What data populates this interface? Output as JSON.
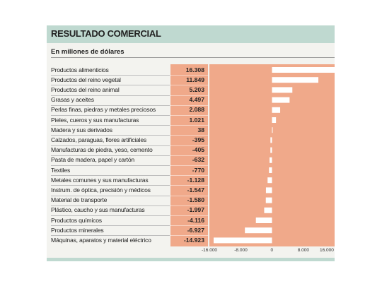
{
  "chart_data": {
    "type": "bar",
    "orientation": "horizontal",
    "title": "RESULTADO COMERCIAL",
    "subtitle": "En millones de dólares",
    "xlim": [
      -16000,
      16000
    ],
    "x_ticks": [
      "-16.000",
      "-8.000",
      "0",
      "8.000",
      "16.000"
    ],
    "categories": [
      "Productos alimenticios",
      "Productos del reino vegetal",
      "Productos del reino animal",
      "Grasas y aceites",
      "Perlas finas, piedras y metales preciosos",
      "Pieles, cueros y sus manufacturas",
      "Madera y sus derivados",
      "Calzados, paraguas, flores artificiales",
      "Manufacturas de piedra, yeso, cemento",
      "Pasta de madera, papel y cartón",
      "Textiles",
      "Metales comunes y sus manufacturas",
      "Instrum. de óptica, precisión y médicos",
      "Material de transporte",
      "Plástico, caucho y sus manufacturas",
      "Productos químicos",
      "Productos minerales",
      "Máquinas, aparatos y material eléctrico"
    ],
    "values": [
      16308,
      11849,
      5203,
      4497,
      2088,
      1021,
      38,
      -395,
      -405,
      -632,
      -770,
      -1128,
      -1547,
      -1580,
      -1997,
      -4116,
      -6927,
      -14923
    ],
    "value_labels": [
      "16.308",
      "11.849",
      "5.203",
      "4.497",
      "2.088",
      "1.021",
      "38",
      "-395",
      "-405",
      "-632",
      "-770",
      "-1.128",
      "-1.547",
      "-1.580",
      "-1.997",
      "-4.116",
      "-6.927",
      "-14.923"
    ]
  },
  "colors": {
    "header_band": "#bfd9d0",
    "panel": "#f3f3ef",
    "plot_background": "#f0a98a",
    "bar": "#ffffff"
  }
}
